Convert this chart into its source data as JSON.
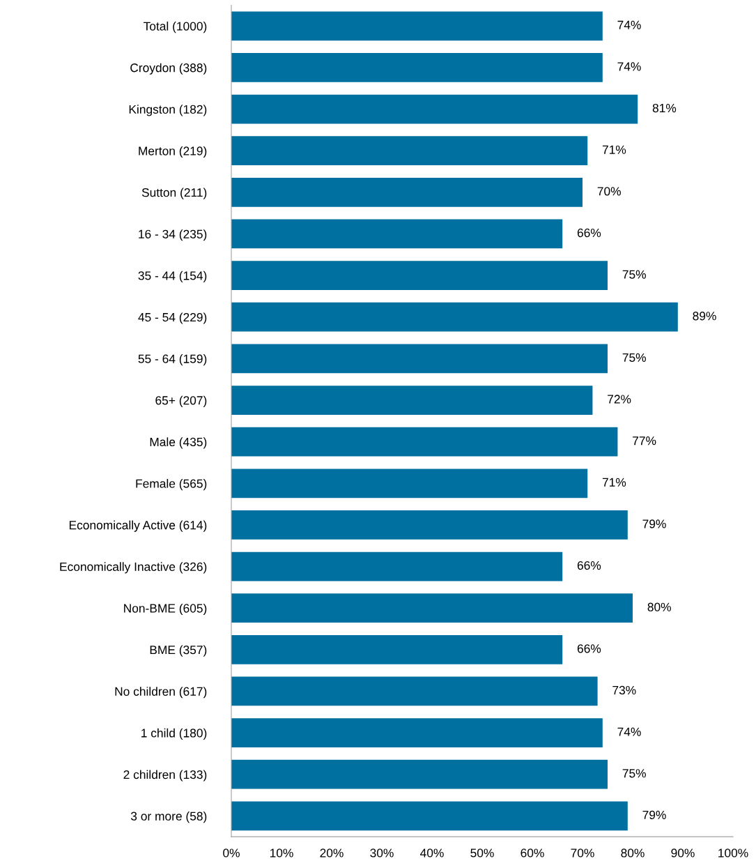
{
  "chart_data": {
    "type": "bar",
    "orientation": "horizontal",
    "categories": [
      "Total (1000)",
      "Croydon (388)",
      "Kingston (182)",
      "Merton (219)",
      "Sutton (211)",
      "16 - 34 (235)",
      "35 - 44 (154)",
      "45 - 54 (229)",
      "55 - 64 (159)",
      "65+ (207)",
      "Male (435)",
      "Female (565)",
      "Economically Active (614)",
      "Economically Inactive (326)",
      "Non-BME (605)",
      "BME (357)",
      "No children (617)",
      "1 child (180)",
      "2 children (133)",
      "3 or more (58)"
    ],
    "values": [
      74,
      74,
      81,
      71,
      70,
      66,
      75,
      89,
      75,
      72,
      77,
      71,
      79,
      66,
      80,
      66,
      73,
      74,
      75,
      79
    ],
    "value_labels": [
      "74%",
      "74%",
      "81%",
      "71%",
      "70%",
      "66%",
      "75%",
      "89%",
      "75%",
      "72%",
      "77%",
      "71%",
      "79%",
      "66%",
      "80%",
      "66%",
      "73%",
      "74%",
      "75%",
      "79%"
    ],
    "color": "#0070a0",
    "xlim": [
      0,
      100
    ],
    "xticks": [
      {
        "value": 0,
        "label": "0%"
      },
      {
        "value": 10,
        "label": "10%"
      },
      {
        "value": 20,
        "label": "20%"
      },
      {
        "value": 30,
        "label": "30%"
      },
      {
        "value": 40,
        "label": "40%"
      },
      {
        "value": 50,
        "label": "50%"
      },
      {
        "value": 60,
        "label": "60%"
      },
      {
        "value": 70,
        "label": "70%"
      },
      {
        "value": 80,
        "label": "80%"
      },
      {
        "value": 90,
        "label": "90%"
      },
      {
        "value": 100,
        "label": "100%"
      }
    ],
    "grid": false
  }
}
